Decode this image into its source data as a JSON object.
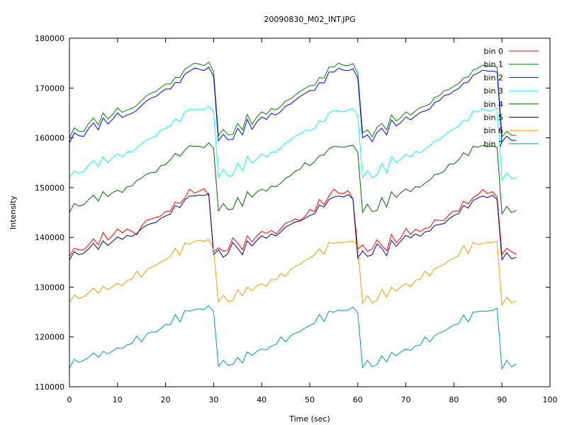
{
  "chart_data": {
    "type": "line",
    "title": "20090830_M02_INT.JPG",
    "xlabel": "Time (sec)",
    "ylabel": "Intensity",
    "xlim": [
      0,
      100
    ],
    "ylim": [
      110000,
      180000
    ],
    "x_ticks": [
      0,
      10,
      20,
      30,
      40,
      50,
      60,
      70,
      80,
      90,
      100
    ],
    "y_ticks": [
      110000,
      120000,
      130000,
      140000,
      150000,
      160000,
      170000,
      180000
    ],
    "grid": false,
    "legend_position": "top-right",
    "x": [
      0,
      1,
      2,
      3,
      4,
      5,
      6,
      7,
      8,
      9,
      10,
      11,
      12,
      13,
      14,
      15,
      16,
      17,
      18,
      19,
      20,
      21,
      22,
      23,
      24,
      25,
      26,
      27,
      28,
      29,
      30,
      31,
      32,
      33,
      34,
      35,
      36,
      37,
      38,
      39,
      40,
      41,
      42,
      43,
      44,
      45,
      46,
      47,
      48,
      49,
      50,
      51,
      52,
      53,
      54,
      55,
      56,
      57,
      58,
      59,
      60,
      61,
      62,
      63,
      64,
      65,
      66,
      67,
      68,
      69,
      70,
      71,
      72,
      73,
      74,
      75,
      76,
      77,
      78,
      79,
      80,
      81,
      82,
      83,
      84,
      85,
      86,
      87,
      88,
      89,
      90,
      91,
      92,
      93
    ],
    "series": [
      {
        "name": "bin 0",
        "color": "#ff0000",
        "values": [
          136200,
          137800,
          137500,
          137500,
          138500,
          139700,
          138500,
          141000,
          139500,
          140400,
          141700,
          140900,
          141700,
          141200,
          140500,
          142300,
          143400,
          143700,
          144000,
          144300,
          145200,
          145300,
          147100,
          146800,
          147900,
          149700,
          148900,
          149300,
          149800,
          148400,
          137100,
          137900,
          137200,
          137500,
          139900,
          138900,
          137500,
          140300,
          139100,
          140300,
          141200,
          140800,
          141400,
          140700,
          141800,
          142900,
          143200,
          143700,
          143400,
          144200,
          145600,
          145200,
          147600,
          146600,
          148300,
          149700,
          148900,
          148800,
          149400,
          147700,
          137600,
          138500,
          137200,
          137700,
          139500,
          138400,
          137300,
          140600,
          138900,
          140000,
          141800,
          140600,
          141600,
          141200,
          141800,
          142000,
          143500,
          143400,
          143400,
          144600,
          145300,
          145300,
          147300,
          146700,
          148000,
          148600,
          149600,
          148800,
          149200,
          148100,
          136600,
          137800,
          137100,
          136600
        ]
      },
      {
        "name": "bin 1",
        "color": "#008000",
        "values": [
          160000,
          162000,
          161300,
          161300,
          162900,
          164000,
          162600,
          165000,
          163800,
          164700,
          166000,
          165100,
          165600,
          165900,
          166500,
          167500,
          168400,
          169000,
          169300,
          170100,
          170800,
          170800,
          172100,
          172100,
          173800,
          174400,
          175000,
          174800,
          174500,
          175200,
          173300,
          160400,
          161700,
          160600,
          160700,
          162900,
          161600,
          164700,
          162700,
          164200,
          165200,
          164700,
          165900,
          165600,
          166300,
          167400,
          167800,
          168600,
          169300,
          169900,
          170500,
          170500,
          172100,
          172000,
          174200,
          174200,
          175000,
          174600,
          174500,
          174900,
          173000,
          161000,
          161600,
          160200,
          162100,
          162900,
          161600,
          164600,
          163400,
          164100,
          165200,
          164600,
          165400,
          166100,
          166400,
          166800,
          168100,
          168500,
          169500,
          169700,
          170400,
          170900,
          172000,
          172200,
          173600,
          174000,
          174600,
          174400,
          174400,
          174200,
          160200,
          161300,
          160500,
          160500
        ]
      },
      {
        "name": "bin 2",
        "color": "#0000ff",
        "values": [
          159000,
          161000,
          160400,
          160300,
          161900,
          163000,
          161600,
          164000,
          162800,
          163700,
          165000,
          164100,
          164600,
          164900,
          165500,
          166500,
          167400,
          168000,
          168300,
          169100,
          169800,
          169800,
          171100,
          171100,
          172800,
          173400,
          174000,
          173800,
          173500,
          174200,
          172300,
          159400,
          160700,
          159600,
          159700,
          161900,
          160600,
          163700,
          161700,
          163200,
          164200,
          163700,
          164900,
          164600,
          165300,
          166400,
          166800,
          167600,
          168300,
          168900,
          169500,
          169500,
          171100,
          171000,
          173200,
          173200,
          174000,
          173600,
          173500,
          173900,
          172000,
          160000,
          160600,
          159200,
          161100,
          161900,
          160600,
          163600,
          162400,
          163100,
          164200,
          163600,
          164400,
          165100,
          165400,
          165800,
          167100,
          167500,
          168500,
          168700,
          169400,
          169900,
          171000,
          171200,
          172600,
          173000,
          173600,
          173400,
          173400,
          173200,
          159200,
          160300,
          159500,
          159500
        ]
      },
      {
        "name": "bin 3",
        "color": "#00ffff",
        "values": [
          152000,
          153400,
          152900,
          153300,
          154600,
          155400,
          154300,
          156200,
          155000,
          156000,
          156800,
          156200,
          157200,
          157200,
          158000,
          158800,
          159600,
          160000,
          160400,
          161600,
          161900,
          162500,
          163800,
          163300,
          165200,
          165700,
          165600,
          165800,
          165700,
          166300,
          165100,
          152100,
          153700,
          152300,
          152500,
          154900,
          153400,
          156300,
          154900,
          155800,
          156800,
          156100,
          157100,
          157200,
          158000,
          159000,
          159600,
          160400,
          160800,
          161500,
          161500,
          161900,
          163400,
          163200,
          165000,
          165500,
          165400,
          165200,
          165600,
          165900,
          164400,
          152000,
          153400,
          152000,
          152600,
          154900,
          153000,
          156200,
          155000,
          155800,
          156700,
          156100,
          157300,
          157000,
          157800,
          158400,
          159400,
          159700,
          160500,
          161300,
          161800,
          162400,
          163500,
          163500,
          165400,
          165200,
          165900,
          165400,
          165500,
          166000,
          151500,
          153000,
          151800,
          152000
        ]
      },
      {
        "name": "bin 4",
        "color": "#006400",
        "values": [
          145000,
          146800,
          146300,
          146600,
          147600,
          148500,
          147300,
          149200,
          148200,
          149000,
          149500,
          149000,
          150200,
          150300,
          151400,
          151900,
          152700,
          153000,
          153100,
          154400,
          154600,
          155600,
          156900,
          156300,
          157500,
          158400,
          158300,
          158300,
          158000,
          159000,
          157900,
          145300,
          146800,
          145600,
          145700,
          148000,
          146300,
          149200,
          148100,
          149100,
          149700,
          149300,
          150300,
          150200,
          150900,
          151900,
          152400,
          153300,
          153700,
          155000,
          154400,
          155200,
          156400,
          156600,
          157800,
          158300,
          158200,
          158100,
          158300,
          158500,
          157100,
          145000,
          146700,
          145200,
          145400,
          148000,
          146100,
          149200,
          148000,
          149000,
          149700,
          149200,
          150200,
          150100,
          150900,
          151500,
          152600,
          152800,
          153300,
          154700,
          154700,
          155600,
          157000,
          156400,
          158300,
          158100,
          158500,
          158200,
          158300,
          158100,
          144700,
          146200,
          145000,
          145400
        ]
      },
      {
        "name": "bin 5",
        "color": "#000080",
        "values": [
          135500,
          137100,
          136500,
          136800,
          137700,
          138800,
          137600,
          139300,
          138400,
          139200,
          140100,
          139600,
          140400,
          140200,
          140800,
          141800,
          142400,
          142800,
          143000,
          143800,
          144300,
          144700,
          146400,
          146000,
          147500,
          148300,
          148300,
          148500,
          148400,
          148800,
          136500,
          137500,
          136000,
          136800,
          139000,
          137800,
          136500,
          139300,
          138300,
          139400,
          140300,
          139800,
          140700,
          140300,
          141100,
          142100,
          142600,
          143100,
          143300,
          143800,
          144400,
          144700,
          146500,
          146100,
          147600,
          148100,
          148300,
          148100,
          148600,
          147700,
          135800,
          137300,
          136200,
          136500,
          138700,
          137800,
          136300,
          139400,
          138200,
          139300,
          140400,
          139900,
          140700,
          140200,
          141100,
          141300,
          142400,
          142600,
          142800,
          143700,
          144400,
          144800,
          146400,
          145900,
          147400,
          147900,
          148300,
          148000,
          148500,
          147600,
          135500,
          136900,
          135700,
          136000
        ]
      },
      {
        "name": "bin 6",
        "color": "#e8a000",
        "values": [
          126900,
          128400,
          127800,
          128100,
          128900,
          129800,
          128800,
          130200,
          129500,
          130100,
          130800,
          130300,
          131400,
          131600,
          133200,
          132000,
          133400,
          134000,
          134400,
          135000,
          135500,
          136200,
          137800,
          136400,
          138900,
          138600,
          139200,
          139400,
          139200,
          139600,
          137500,
          127000,
          128400,
          127100,
          127300,
          129500,
          128300,
          130000,
          129300,
          130300,
          130700,
          130200,
          131500,
          131500,
          132700,
          132200,
          133500,
          134200,
          134600,
          135400,
          135800,
          136500,
          137700,
          136600,
          139000,
          138800,
          139000,
          139000,
          139100,
          139300,
          138200,
          126700,
          128300,
          126800,
          127400,
          129600,
          128000,
          130000,
          129200,
          130100,
          130700,
          130100,
          131400,
          131600,
          133200,
          132300,
          133700,
          134100,
          134600,
          135400,
          135800,
          136400,
          138400,
          136700,
          139000,
          138600,
          138800,
          139000,
          139000,
          139200,
          126400,
          128000,
          126800,
          127300
        ]
      },
      {
        "name": "bin 7",
        "color": "#009aa8",
        "values": [
          113800,
          115500,
          114900,
          115300,
          115900,
          116800,
          115900,
          117100,
          116600,
          117200,
          117800,
          117700,
          118400,
          118700,
          120200,
          119000,
          120500,
          121000,
          121000,
          121700,
          122500,
          122500,
          124500,
          123000,
          125300,
          125200,
          125500,
          125700,
          125500,
          126300,
          125100,
          114100,
          115300,
          114300,
          114500,
          115900,
          114800,
          117000,
          116300,
          117100,
          117600,
          117400,
          118200,
          118500,
          120000,
          119000,
          120200,
          120800,
          121100,
          121800,
          122300,
          122800,
          124500,
          123100,
          125200,
          125000,
          125400,
          125300,
          125400,
          126000,
          124800,
          113800,
          115300,
          114000,
          114500,
          116200,
          115000,
          116900,
          116200,
          117000,
          117600,
          117300,
          118200,
          118400,
          120000,
          119000,
          120300,
          120800,
          121200,
          121800,
          122400,
          122700,
          124400,
          123000,
          125000,
          125100,
          125200,
          125200,
          125300,
          125800,
          113600,
          115300,
          114000,
          114600
        ]
      }
    ]
  }
}
